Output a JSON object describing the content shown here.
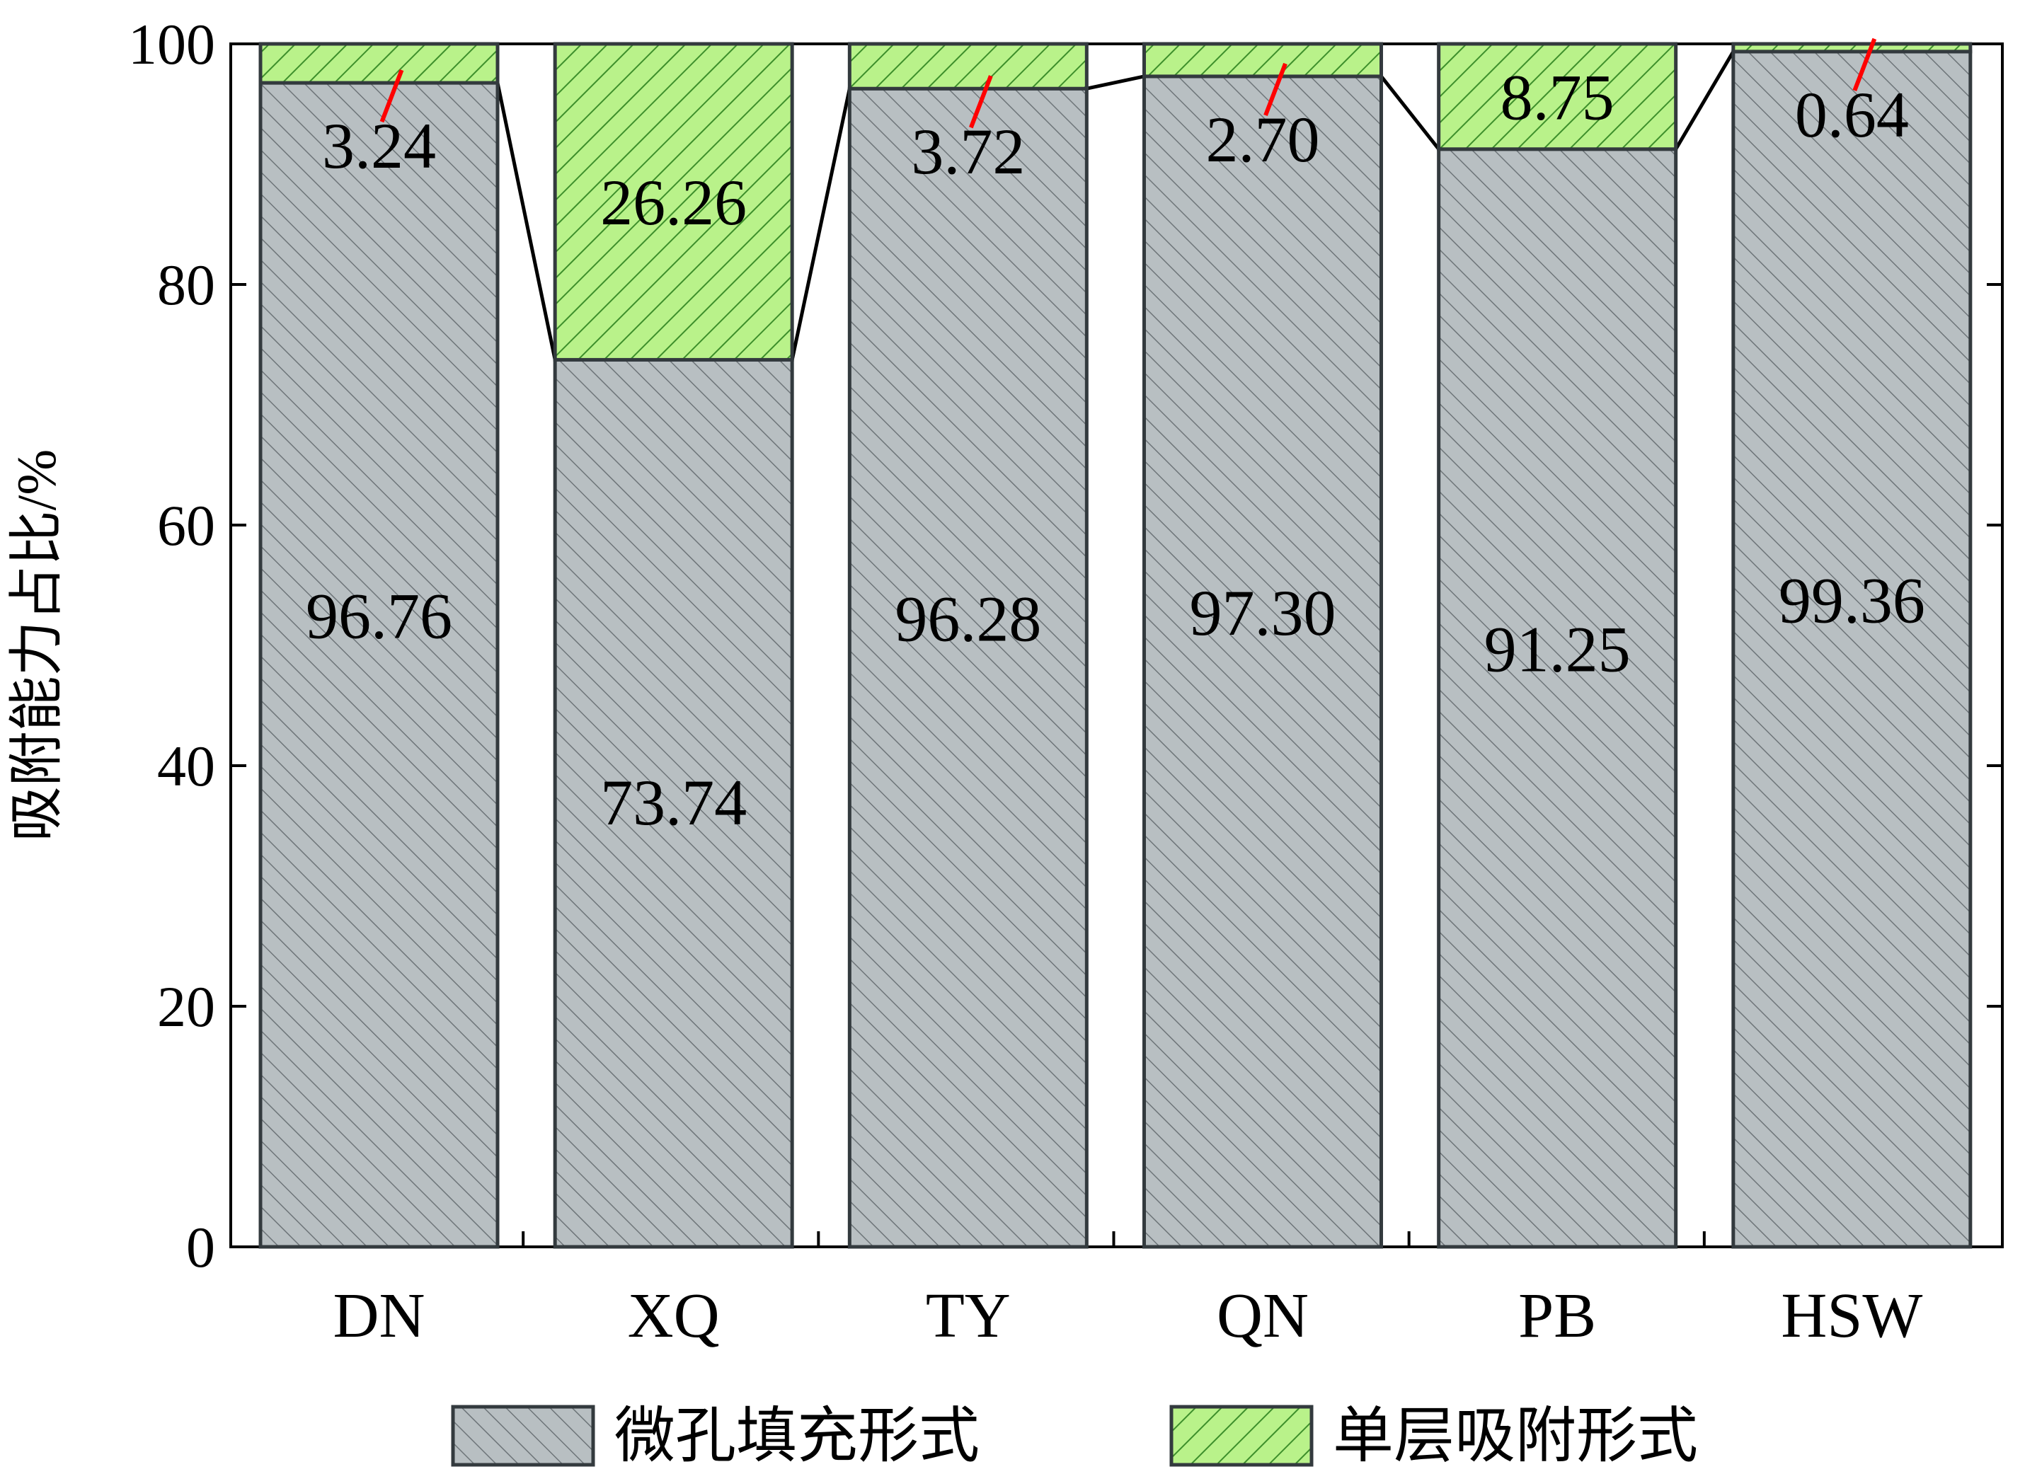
{
  "chart_data": {
    "type": "bar",
    "stacked": true,
    "categories": [
      "DN",
      "XQ",
      "TY",
      "QN",
      "PB",
      "HSW"
    ],
    "series": [
      {
        "name": "微孔填充形式",
        "values": [
          96.76,
          73.74,
          96.28,
          97.3,
          91.25,
          99.36
        ],
        "labels": [
          "96.76",
          "73.74",
          "96.28",
          "97.30",
          "91.25",
          "99.36"
        ],
        "color": "#b8bfc2",
        "pattern": "hatch-diagonal-right"
      },
      {
        "name": "单层吸附形式",
        "values": [
          3.24,
          26.26,
          3.72,
          2.7,
          8.75,
          0.64
        ],
        "labels": [
          "3.24",
          "26.26",
          "3.72",
          "2.70",
          "8.75",
          "0.64"
        ],
        "color": "#b9f28a",
        "pattern": "hatch-diagonal-left"
      }
    ],
    "ylabel": "吸附能力占比/%",
    "xlabel": "",
    "ylim": [
      0,
      100
    ],
    "yticks": [
      "0",
      "20",
      "40",
      "60",
      "80",
      "100"
    ],
    "legend_position": "bottom",
    "grid": false,
    "connector_lines": true,
    "small_segment_leader_color": "#ff0000",
    "bar_outline_color": "#333a3e"
  }
}
